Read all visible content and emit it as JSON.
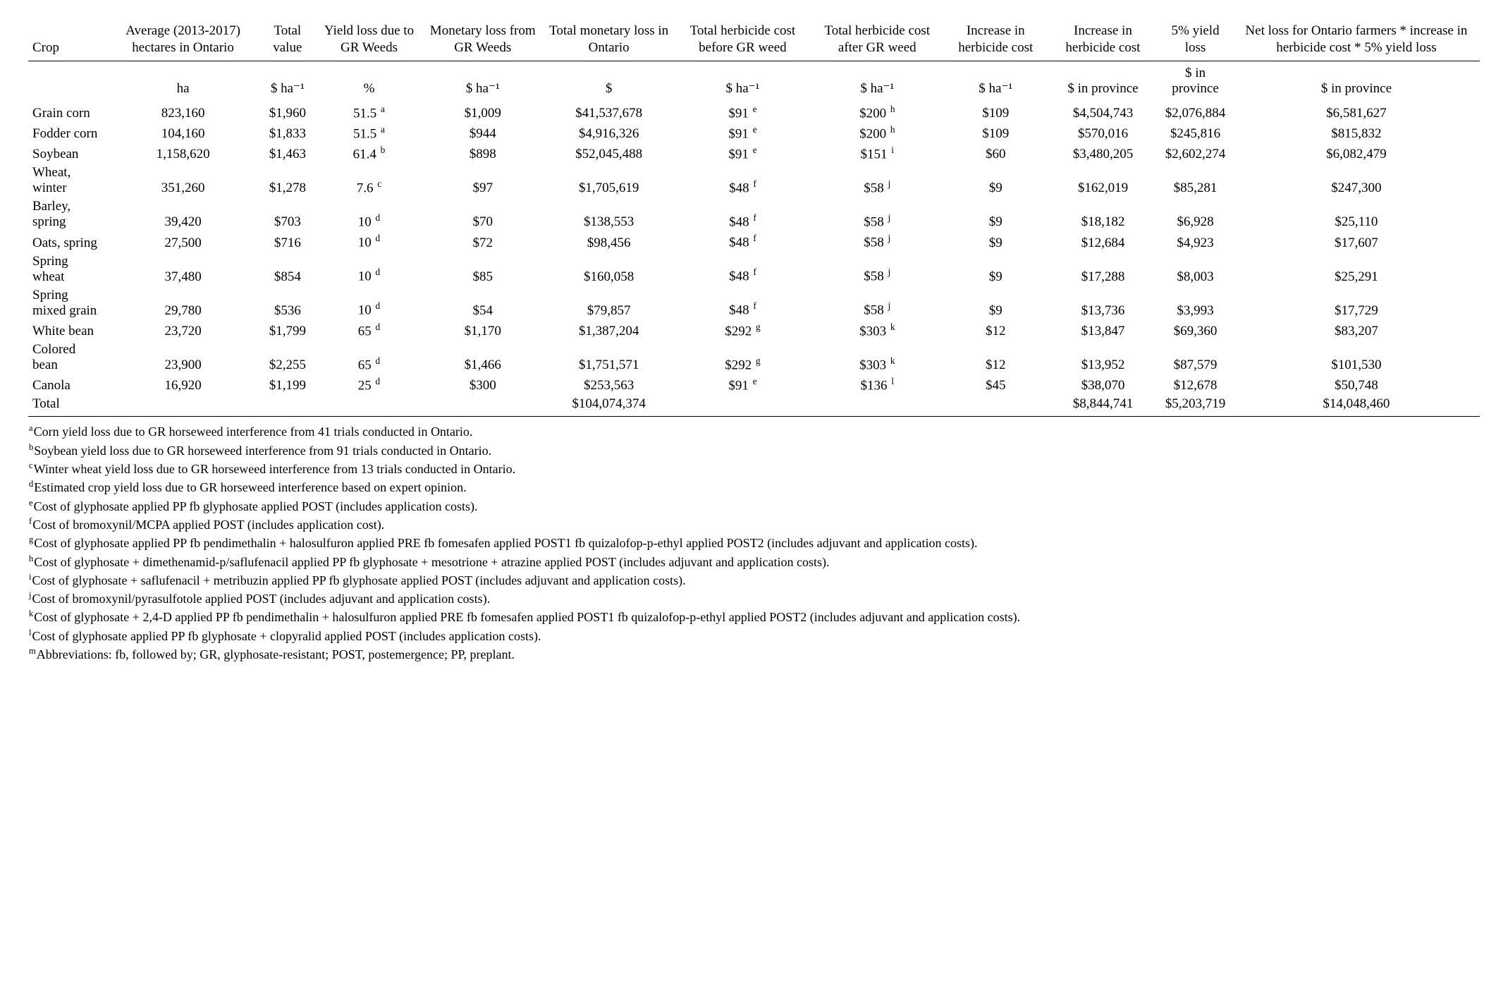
{
  "table": {
    "headers": [
      "Crop",
      "Average (2013-2017) hectares in Ontario",
      "Total value",
      "Yield loss due to GR Weeds",
      "Monetary loss from GR Weeds",
      "Total monetary loss in Ontario",
      "Total herbicide cost before GR weed",
      "Total herbicide cost after GR weed",
      "Increase in herbicide cost",
      "Increase in herbicide cost",
      "5% yield loss",
      "Net loss for Ontario farmers * increase in herbicide cost * 5% yield loss"
    ],
    "units": [
      "",
      "ha",
      "$ ha⁻¹",
      "%",
      "$ ha⁻¹",
      "$",
      "$ ha⁻¹",
      "$ ha⁻¹",
      "$ ha⁻¹",
      "$ in province",
      "$ in province",
      "$ in province"
    ],
    "rows": [
      {
        "crop": "Grain corn",
        "ha": "823,160",
        "val": "$1,960",
        "yl": "51.5",
        "ylS": "a",
        "ml": "$1,009",
        "tml": "$41,537,678",
        "hb": "$91",
        "hbS": "e",
        "ha2": "$200",
        "ha2S": "h",
        "inc": "$109",
        "incP": "$4,504,743",
        "yl5": "$2,076,884",
        "net": "$6,581,627"
      },
      {
        "crop": "Fodder corn",
        "ha": "104,160",
        "val": "$1,833",
        "yl": "51.5",
        "ylS": "a",
        "ml": "$944",
        "tml": "$4,916,326",
        "hb": "$91",
        "hbS": "e",
        "ha2": "$200",
        "ha2S": "h",
        "inc": "$109",
        "incP": "$570,016",
        "yl5": "$245,816",
        "net": "$815,832"
      },
      {
        "crop": "Soybean",
        "ha": "1,158,620",
        "val": "$1,463",
        "yl": "61.4",
        "ylS": "b",
        "ml": "$898",
        "tml": "$52,045,488",
        "hb": "$91",
        "hbS": "e",
        "ha2": "$151",
        "ha2S": "i",
        "inc": "$60",
        "incP": "$3,480,205",
        "yl5": "$2,602,274",
        "net": "$6,082,479"
      },
      {
        "crop": "Wheat, winter",
        "ha": "351,260",
        "val": "$1,278",
        "yl": "7.6",
        "ylS": "c",
        "ml": "$97",
        "tml": "$1,705,619",
        "hb": "$48",
        "hbS": "f",
        "ha2": "$58",
        "ha2S": "j",
        "inc": "$9",
        "incP": "$162,019",
        "yl5": "$85,281",
        "net": "$247,300"
      },
      {
        "crop": "Barley, spring",
        "ha": "39,420",
        "val": "$703",
        "yl": "10",
        "ylS": "d",
        "ml": "$70",
        "tml": "$138,553",
        "hb": "$48",
        "hbS": "f",
        "ha2": "$58",
        "ha2S": "j",
        "inc": "$9",
        "incP": "$18,182",
        "yl5": "$6,928",
        "net": "$25,110"
      },
      {
        "crop": "Oats, spring",
        "ha": "27,500",
        "val": "$716",
        "yl": "10",
        "ylS": "d",
        "ml": "$72",
        "tml": "$98,456",
        "hb": "$48",
        "hbS": "f",
        "ha2": "$58",
        "ha2S": "j",
        "inc": "$9",
        "incP": "$12,684",
        "yl5": "$4,923",
        "net": "$17,607"
      },
      {
        "crop": "Spring wheat",
        "ha": "37,480",
        "val": "$854",
        "yl": "10",
        "ylS": "d",
        "ml": "$85",
        "tml": "$160,058",
        "hb": "$48",
        "hbS": "f",
        "ha2": "$58",
        "ha2S": "j",
        "inc": "$9",
        "incP": "$17,288",
        "yl5": "$8,003",
        "net": "$25,291"
      },
      {
        "crop": "Spring mixed grain",
        "ha": "29,780",
        "val": "$536",
        "yl": "10",
        "ylS": "d",
        "ml": "$54",
        "tml": "$79,857",
        "hb": "$48",
        "hbS": "f",
        "ha2": "$58",
        "ha2S": "j",
        "inc": "$9",
        "incP": "$13,736",
        "yl5": "$3,993",
        "net": "$17,729"
      },
      {
        "crop": "White bean",
        "ha": "23,720",
        "val": "$1,799",
        "yl": "65",
        "ylS": "d",
        "ml": "$1,170",
        "tml": "$1,387,204",
        "hb": "$292",
        "hbS": "g",
        "ha2": "$303",
        "ha2S": "k",
        "inc": "$12",
        "incP": "$13,847",
        "yl5": "$69,360",
        "net": "$83,207"
      },
      {
        "crop": "Colored bean",
        "ha": "23,900",
        "val": "$2,255",
        "yl": "65",
        "ylS": "d",
        "ml": "$1,466",
        "tml": "$1,751,571",
        "hb": "$292",
        "hbS": "g",
        "ha2": "$303",
        "ha2S": "k",
        "inc": "$12",
        "incP": "$13,952",
        "yl5": "$87,579",
        "net": "$101,530"
      },
      {
        "crop": "Canola",
        "ha": "16,920",
        "val": "$1,199",
        "yl": "25",
        "ylS": "d",
        "ml": "$300",
        "tml": "$253,563",
        "hb": "$91",
        "hbS": "e",
        "ha2": "$136",
        "ha2S": "l",
        "inc": "$45",
        "incP": "$38,070",
        "yl5": "$12,678",
        "net": "$50,748"
      }
    ],
    "total": {
      "label": "Total",
      "tml": "$104,074,374",
      "incP": "$8,844,741",
      "yl5": "$5,203,719",
      "net": "$14,048,460"
    }
  },
  "footnotes": [
    {
      "s": "a",
      "t": "Corn yield loss due to GR horseweed interference from 41 trials conducted in Ontario."
    },
    {
      "s": "b",
      "t": "Soybean yield loss due to GR horseweed interference from 91 trials conducted in Ontario."
    },
    {
      "s": "c",
      "t": "Winter wheat yield loss due to GR horseweed interference from 13 trials conducted in Ontario."
    },
    {
      "s": "d",
      "t": "Estimated crop yield loss due to GR horseweed interference based on expert opinion."
    },
    {
      "s": "e",
      "t": "Cost of glyphosate applied PP fb glyphosate applied POST (includes application costs)."
    },
    {
      "s": "f",
      "t": "Cost of bromoxynil/MCPA applied POST (includes application cost)."
    },
    {
      "s": "g",
      "t": "Cost of glyphosate applied PP fb pendimethalin + halosulfuron applied PRE fb fomesafen applied POST1 fb quizalofop-p-ethyl applied POST2 (includes adjuvant and application costs)."
    },
    {
      "s": "h",
      "t": "Cost of glyphosate + dimethenamid-p/saflufenacil applied PP fb glyphosate + mesotrione + atrazine applied POST (includes adjuvant and application costs)."
    },
    {
      "s": "i",
      "t": "Cost of glyphosate + saflufenacil + metribuzin applied PP fb glyphosate applied POST (includes adjuvant and application costs)."
    },
    {
      "s": "j",
      "t": "Cost of bromoxynil/pyrasulfotole applied POST (includes adjuvant and application costs)."
    },
    {
      "s": "k",
      "t": "Cost of glyphosate + 2,4-D applied PP fb pendimethalin + halosulfuron applied PRE fb fomesafen applied POST1 fb quizalofop-p-ethyl applied POST2 (includes adjuvant and application costs)."
    },
    {
      "s": "l",
      "t": "Cost of glyphosate applied PP fb glyphosate + clopyralid applied POST (includes application costs)."
    },
    {
      "s": "m",
      "t": "Abbreviations: fb, followed by; GR, glyphosate-resistant; POST, postemergence; PP, preplant."
    }
  ]
}
